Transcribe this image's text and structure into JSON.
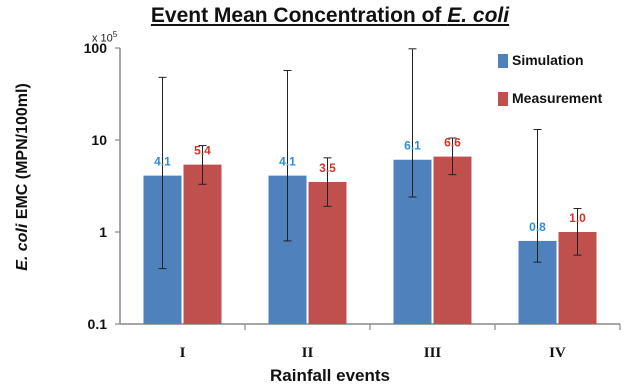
{
  "chart_data": {
    "type": "bar",
    "title_main": "Event Mean Concentration of ",
    "title_italic": "E. coli",
    "scale_base": "x 10",
    "scale_exp": "5",
    "ylabel_italic": "E. coli",
    "ylabel_rest": " EMC (MPN/100ml)",
    "xlabel": "Rainfall events",
    "yscale": "log",
    "ylim": [
      0.1,
      100
    ],
    "yticks": [
      "0.1",
      "1",
      "10",
      "100"
    ],
    "categories": [
      "I",
      "II",
      "III",
      "IV"
    ],
    "series": [
      {
        "name": "Simulation",
        "color": "#4F81BD",
        "label_color": "#2E8FD8",
        "values": [
          4.1,
          4.1,
          6.1,
          0.8
        ],
        "labels": [
          "4.1",
          "4.1",
          "6.1",
          "0.8"
        ],
        "err_low": [
          0.4,
          0.8,
          2.4,
          0.47
        ],
        "err_high": [
          48,
          57,
          98,
          13
        ]
      },
      {
        "name": "Measurement",
        "color": "#C0504D",
        "label_color": "#D2332B",
        "values": [
          5.4,
          3.5,
          6.6,
          1.0
        ],
        "labels": [
          "5.4",
          "3.5",
          "6.6",
          "1.0"
        ],
        "err_low": [
          3.3,
          1.9,
          4.2,
          0.56
        ],
        "err_high": [
          8.7,
          6.4,
          10.5,
          1.8
        ]
      }
    ],
    "legend_position": "top-right",
    "grid": false
  }
}
